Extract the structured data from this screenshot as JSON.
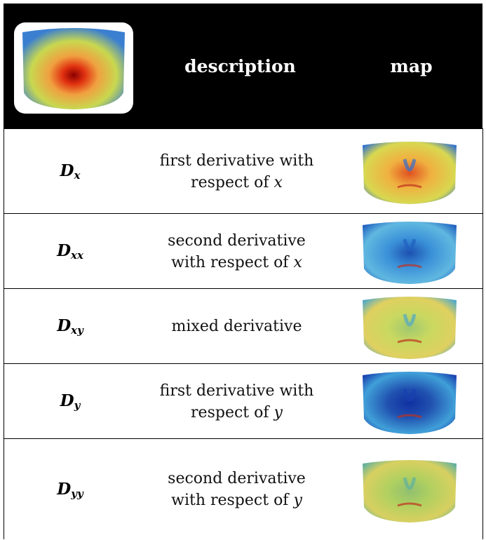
{
  "table": {
    "header": {
      "description": "description",
      "map": "map"
    },
    "rows": [
      {
        "symbol": "D",
        "subscript": "x",
        "description": [
          "first derivative with",
          "respect of"
        ],
        "variable": "x"
      },
      {
        "symbol": "D",
        "subscript": "xx",
        "description": [
          "second derivative",
          "with respect of"
        ],
        "variable": "x"
      },
      {
        "symbol": "D",
        "subscript": "xy",
        "description": [
          "mixed derivative"
        ]
      },
      {
        "symbol": "D",
        "subscript": "y",
        "description": [
          "first derivative with",
          "respect of"
        ],
        "variable": "y"
      },
      {
        "symbol": "D",
        "subscript": "yy",
        "description": [
          "second derivative",
          "with respect of"
        ],
        "variable": "y"
      }
    ]
  }
}
